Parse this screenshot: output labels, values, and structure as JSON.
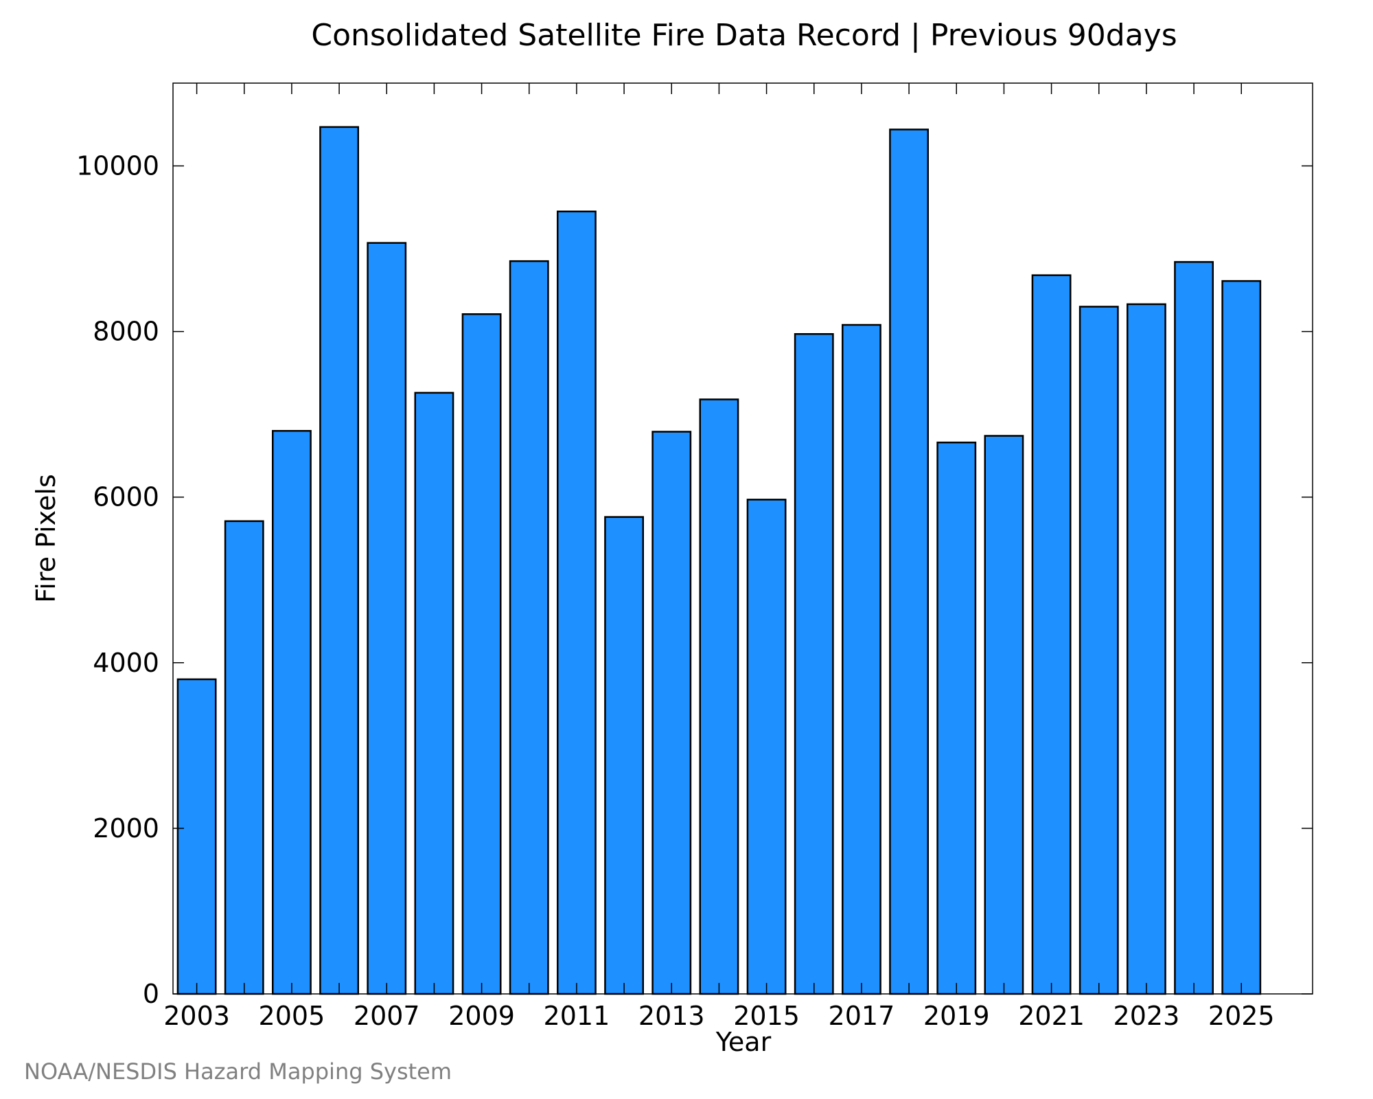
{
  "chart_data": {
    "type": "bar",
    "title": "Consolidated Satellite Fire Data Record | Previous 90days",
    "xlabel": "Year",
    "ylabel": "Fire Pixels",
    "categories": [
      2003,
      2004,
      2005,
      2006,
      2007,
      2008,
      2009,
      2010,
      2011,
      2012,
      2013,
      2014,
      2015,
      2016,
      2017,
      2018,
      2019,
      2020,
      2021,
      2022,
      2023,
      2024,
      2025
    ],
    "values": [
      3800,
      5710,
      6800,
      10470,
      9070,
      7260,
      8210,
      8850,
      9450,
      5760,
      6790,
      7180,
      5970,
      7970,
      8080,
      10440,
      6660,
      6740,
      8680,
      8300,
      8330,
      8840,
      8610
    ],
    "xlim": [
      2002.5,
      2026.5
    ],
    "ylim": [
      0,
      11000
    ],
    "yticks": [
      0,
      2000,
      4000,
      6000,
      8000,
      10000
    ],
    "xticks": [
      2003,
      2004,
      2005,
      2006,
      2007,
      2008,
      2009,
      2010,
      2011,
      2012,
      2013,
      2014,
      2015,
      2016,
      2017,
      2018,
      2019,
      2020,
      2021,
      2022,
      2023,
      2024,
      2025
    ],
    "xtick_labels": [
      "2003",
      "2005",
      "2007",
      "2009",
      "2011",
      "2013",
      "2015",
      "2017",
      "2019",
      "2021",
      "2023",
      "2025"
    ],
    "grid": false,
    "bar_color": "#1E90FF",
    "edge_color": "#000000"
  },
  "footer": {
    "credit": "NOAA/NESDIS Hazard Mapping System"
  }
}
